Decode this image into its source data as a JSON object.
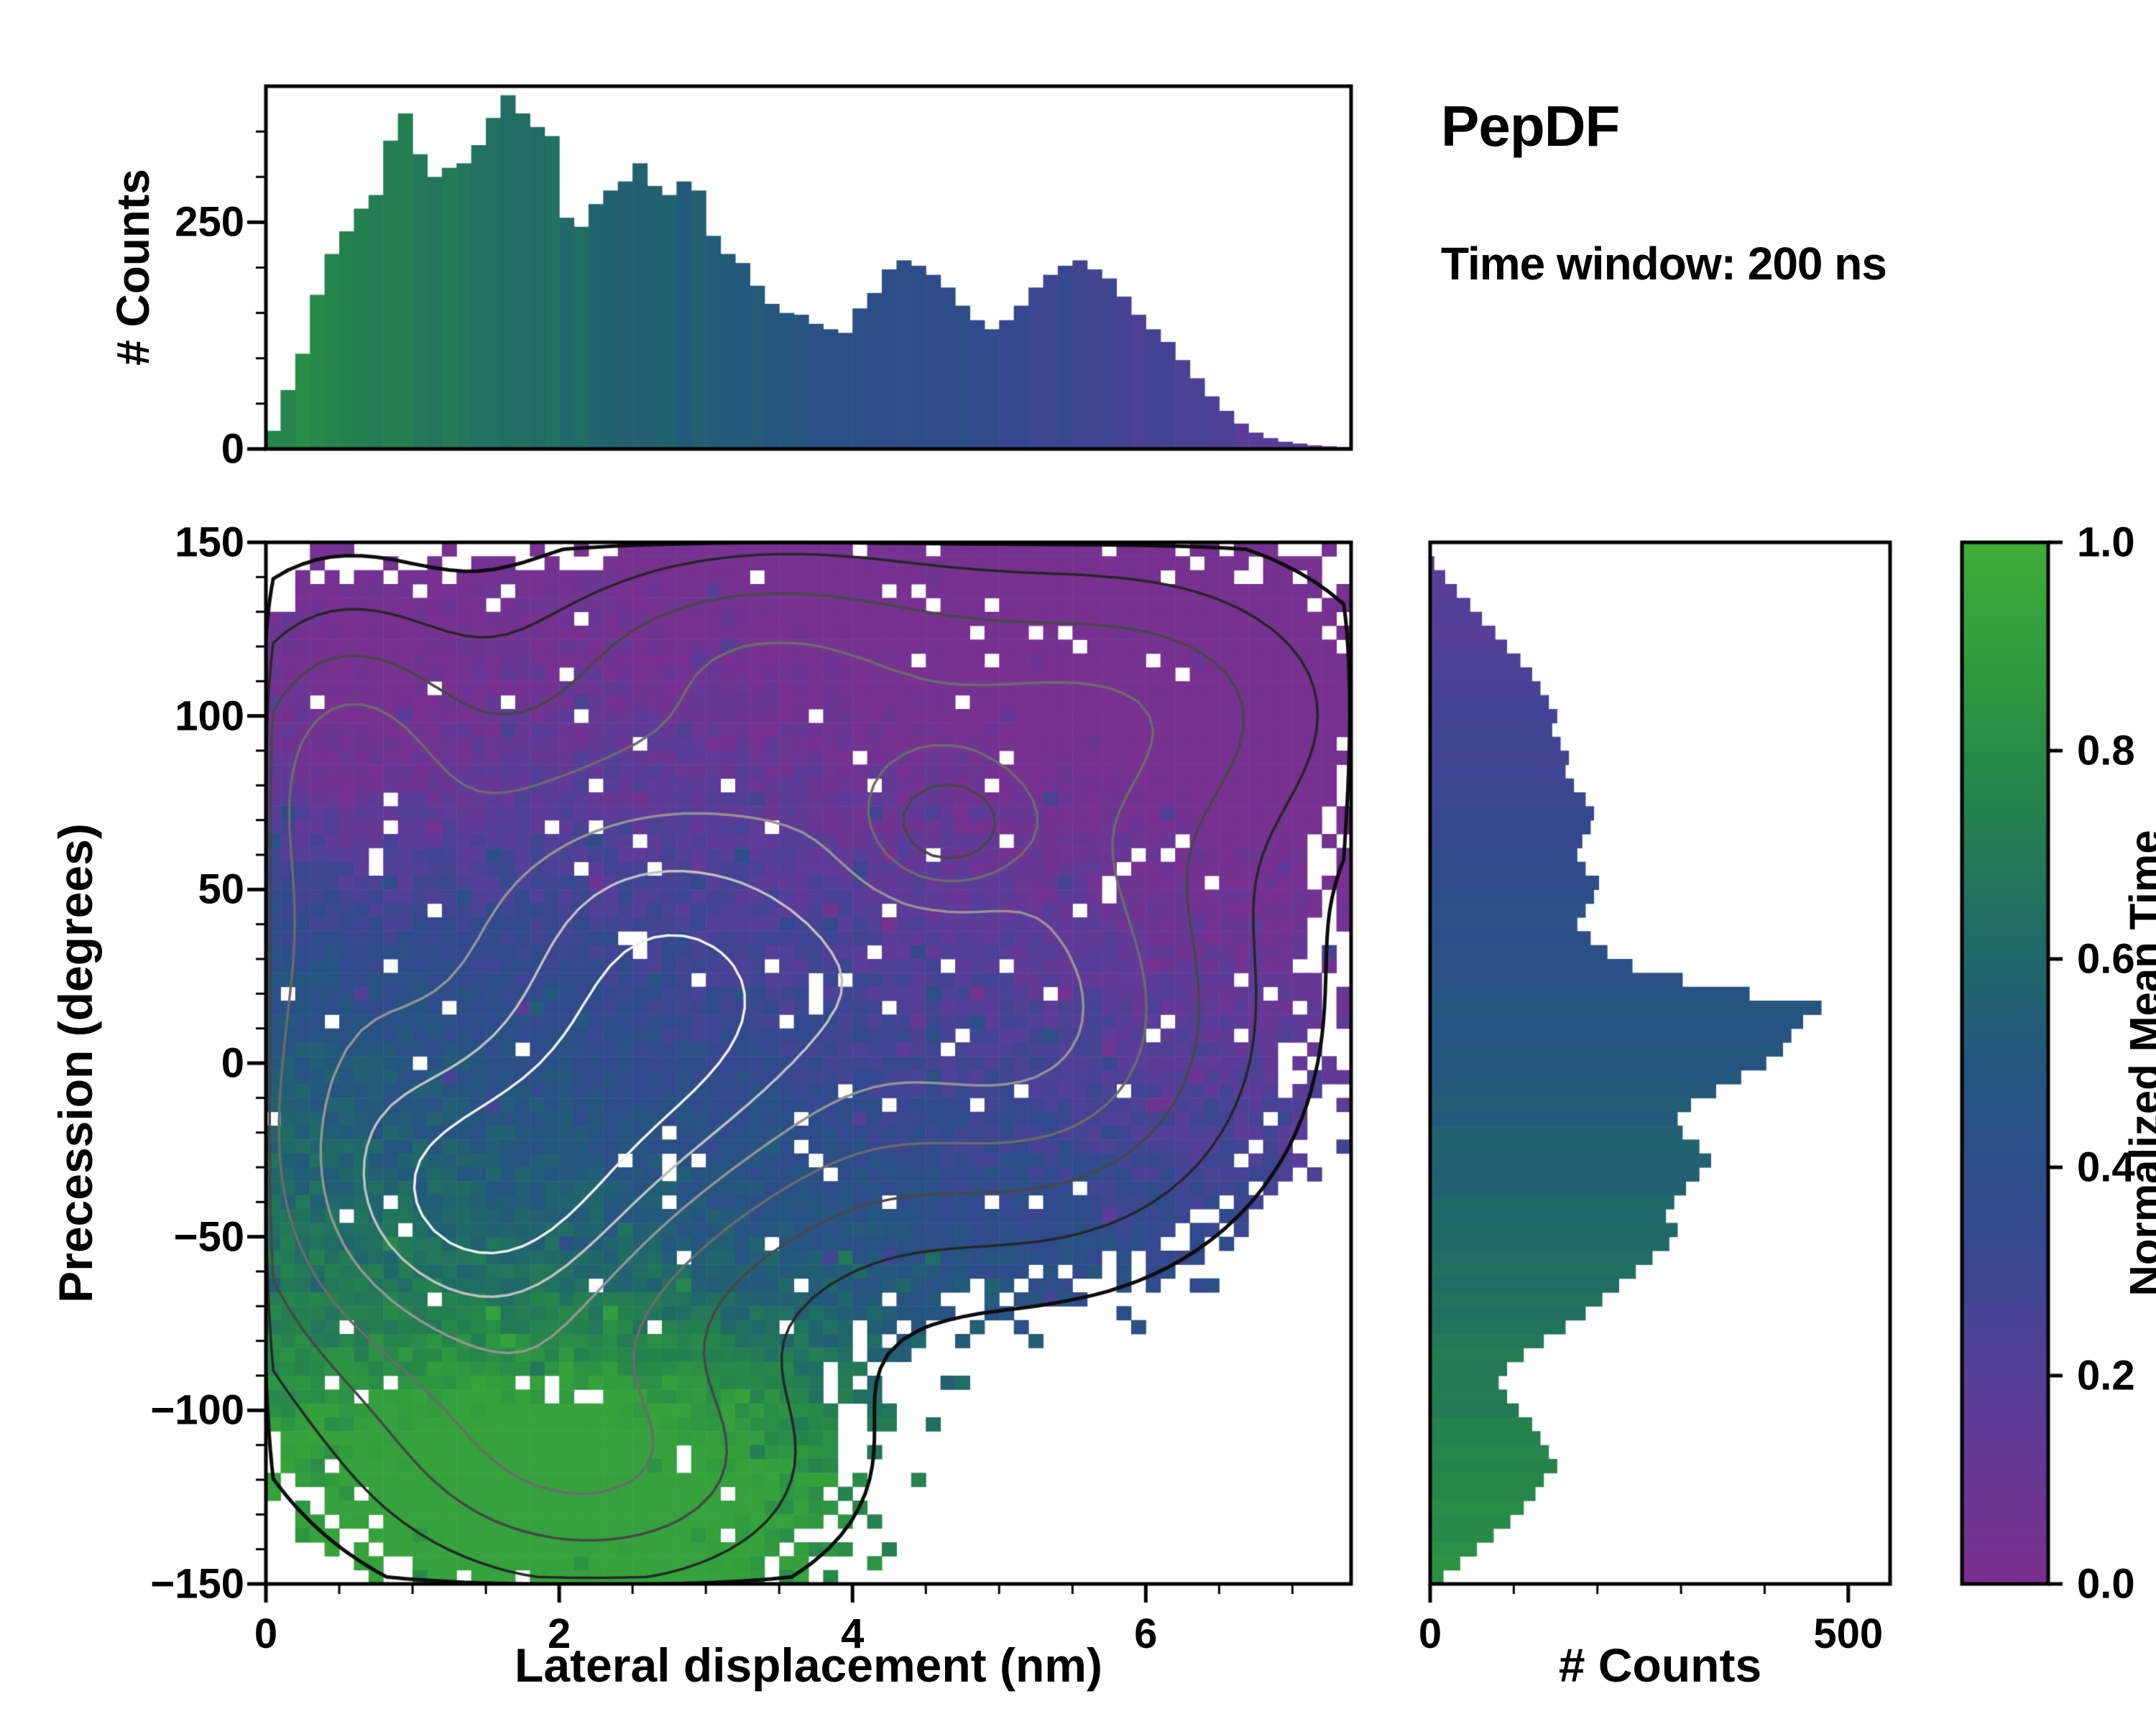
{
  "title": "PepDF",
  "subtitle": "Time window: 200 ns",
  "colors": {
    "background": "#ffffff",
    "axis": "#000000",
    "colormap_stops": [
      [
        0.0,
        "#7b2f8f"
      ],
      [
        0.18,
        "#5a3d99"
      ],
      [
        0.35,
        "#31498e"
      ],
      [
        0.5,
        "#24567e"
      ],
      [
        0.62,
        "#1f6b66"
      ],
      [
        0.75,
        "#25824d"
      ],
      [
        0.88,
        "#2f9a3f"
      ],
      [
        1.0,
        "#3ead38"
      ]
    ]
  },
  "chart_data": [
    {
      "type": "bar",
      "id": "top_histogram",
      "ylabel": "# Counts",
      "x_range": [
        0,
        7.4
      ],
      "bin_width": 0.1,
      "ylim": [
        0,
        400
      ],
      "yticks": [
        {
          "label": "0",
          "value": 0
        },
        {
          "label": "250",
          "value": 250
        }
      ],
      "values": [
        20,
        65,
        105,
        170,
        215,
        240,
        265,
        280,
        340,
        370,
        325,
        300,
        310,
        315,
        335,
        365,
        390,
        370,
        355,
        345,
        255,
        245,
        270,
        285,
        295,
        315,
        290,
        280,
        295,
        285,
        235,
        215,
        205,
        180,
        160,
        150,
        148,
        138,
        132,
        128,
        155,
        172,
        198,
        208,
        202,
        192,
        178,
        158,
        142,
        132,
        142,
        158,
        178,
        192,
        202,
        208,
        198,
        188,
        168,
        148,
        132,
        118,
        98,
        78,
        58,
        42,
        28,
        18,
        12,
        8,
        6,
        4,
        3,
        2
      ],
      "bar_color_t": {
        "base": 0.8,
        "slope_per_nm": -0.09,
        "min": 0.18,
        "max": 0.85
      }
    },
    {
      "type": "heatmap",
      "id": "main_density_map",
      "xlabel": "Lateral displacement (nm)",
      "ylabel": "Precession (degrees)",
      "xlim": [
        0,
        7.4
      ],
      "ylim": [
        -150,
        150
      ],
      "xticks": [
        {
          "label": "0",
          "value": 0
        },
        {
          "label": "2",
          "value": 2
        },
        {
          "label": "4",
          "value": 4
        },
        {
          "label": "6",
          "value": 6
        }
      ],
      "yticks": [
        {
          "label": "150",
          "value": 150
        },
        {
          "label": "100",
          "value": 100
        },
        {
          "label": "50",
          "value": 50
        },
        {
          "label": "0",
          "value": 0
        },
        {
          "label": "−50",
          "value": -50
        },
        {
          "label": "−100",
          "value": -100
        },
        {
          "label": "−150",
          "value": -150
        }
      ],
      "grid": {
        "nx": 74,
        "ny": 75
      },
      "density_components": [
        {
          "cx": 1.4,
          "cy": -45,
          "w": 1.0,
          "sx": 0.95,
          "sy": 40
        },
        {
          "cx": 2.95,
          "cy": 0,
          "w": 0.8,
          "sx": 1.0,
          "sy": 45
        },
        {
          "cx": 5.3,
          "cy": 5,
          "w": 0.75,
          "sx": 1.0,
          "sy": 40
        },
        {
          "cx": 4.3,
          "cy": 75,
          "w": 0.55,
          "sx": 1.5,
          "sy": 45
        },
        {
          "cx": 1.8,
          "cy": 55,
          "w": 0.5,
          "sx": 1.1,
          "sy": 40
        },
        {
          "cx": 2.3,
          "cy": -118,
          "w": 0.6,
          "sx": 1.05,
          "sy": 26
        },
        {
          "cx": 0.55,
          "cy": 95,
          "w": 0.4,
          "sx": 0.55,
          "sy": 28
        },
        {
          "cx": 6.1,
          "cy": 105,
          "w": 0.42,
          "sx": 1.0,
          "sy": 28
        },
        {
          "cx": 0.3,
          "cy": 20,
          "w": 0.45,
          "sx": 0.6,
          "sy": 60
        },
        {
          "cx": 3.3,
          "cy": 122,
          "w": 0.35,
          "sx": 1.0,
          "sy": 20
        },
        {
          "cx": 4.65,
          "cy": 68,
          "w": -0.5,
          "sx": 0.35,
          "sy": 12
        }
      ],
      "mean_time_field": {
        "base": 0.52,
        "slope_y": -0.0028,
        "slope_x": -0.05,
        "noise_amp": 0.07,
        "green_blob": {
          "cx": 2.3,
          "cy": -118,
          "sx": 1.2,
          "sy": 30,
          "boost": 0.33
        },
        "purple_patch": {
          "cx": 0.55,
          "cy": 95,
          "sx": 0.7,
          "sy": 32,
          "drop": 0.2
        }
      },
      "mask": {
        "occupied_threshold": 0.1,
        "core_threshold": 0.18,
        "outlier_threshold": 0.06,
        "core_hole_p": 0.03,
        "edge_drop_p": 0.45,
        "outlier_keep_p": 0.12
      },
      "contours": {
        "levels": [
          0.12,
          0.25,
          0.4,
          0.55,
          0.7,
          0.82,
          0.92
        ],
        "colors": [
          "#0d0d0d",
          "#262626",
          "#474747",
          "#6b6b6b",
          "#949494",
          "#c0c0c0",
          "#efefef"
        ],
        "widths": [
          5,
          3.5,
          3.5,
          3.5,
          3.5,
          3.5,
          3.5
        ]
      }
    },
    {
      "type": "bar",
      "id": "right_histogram",
      "orientation": "horizontal",
      "xlabel": "# Counts",
      "y_range": [
        -150,
        150
      ],
      "bin_height": 4,
      "xlim": [
        0,
        550
      ],
      "xticks": [
        {
          "label": "0",
          "value": 0
        },
        {
          "label": "500",
          "value": 500
        }
      ],
      "values_top_to_bottom": [
        0,
        5,
        18,
        32,
        48,
        62,
        78,
        92,
        108,
        122,
        132,
        142,
        152,
        146,
        156,
        166,
        162,
        172,
        186,
        196,
        192,
        182,
        176,
        186,
        202,
        196,
        186,
        176,
        192,
        212,
        242,
        302,
        382,
        468,
        446,
        432,
        422,
        402,
        372,
        342,
        312,
        296,
        302,
        322,
        336,
        322,
        306,
        292,
        282,
        296,
        286,
        266,
        246,
        226,
        206,
        186,
        162,
        136,
        112,
        92,
        82,
        92,
        106,
        122,
        132,
        142,
        152,
        136,
        126,
        112,
        96,
        76,
        56,
        36,
        16
      ],
      "bar_color_t": {
        "base": 0.5,
        "slope_per_degree": -0.0023,
        "min": 0.17,
        "max": 0.88
      }
    },
    {
      "type": "colorbar",
      "id": "colorbar",
      "label": "Normalized Mean Time",
      "range": [
        0.0,
        1.0
      ],
      "ticks": [
        {
          "label": "1.0",
          "value": 1.0
        },
        {
          "label": "0.8",
          "value": 0.8
        },
        {
          "label": "0.6",
          "value": 0.6
        },
        {
          "label": "0.4",
          "value": 0.4
        },
        {
          "label": "0.2",
          "value": 0.2
        },
        {
          "label": "0.0",
          "value": 0.0
        }
      ]
    }
  ]
}
